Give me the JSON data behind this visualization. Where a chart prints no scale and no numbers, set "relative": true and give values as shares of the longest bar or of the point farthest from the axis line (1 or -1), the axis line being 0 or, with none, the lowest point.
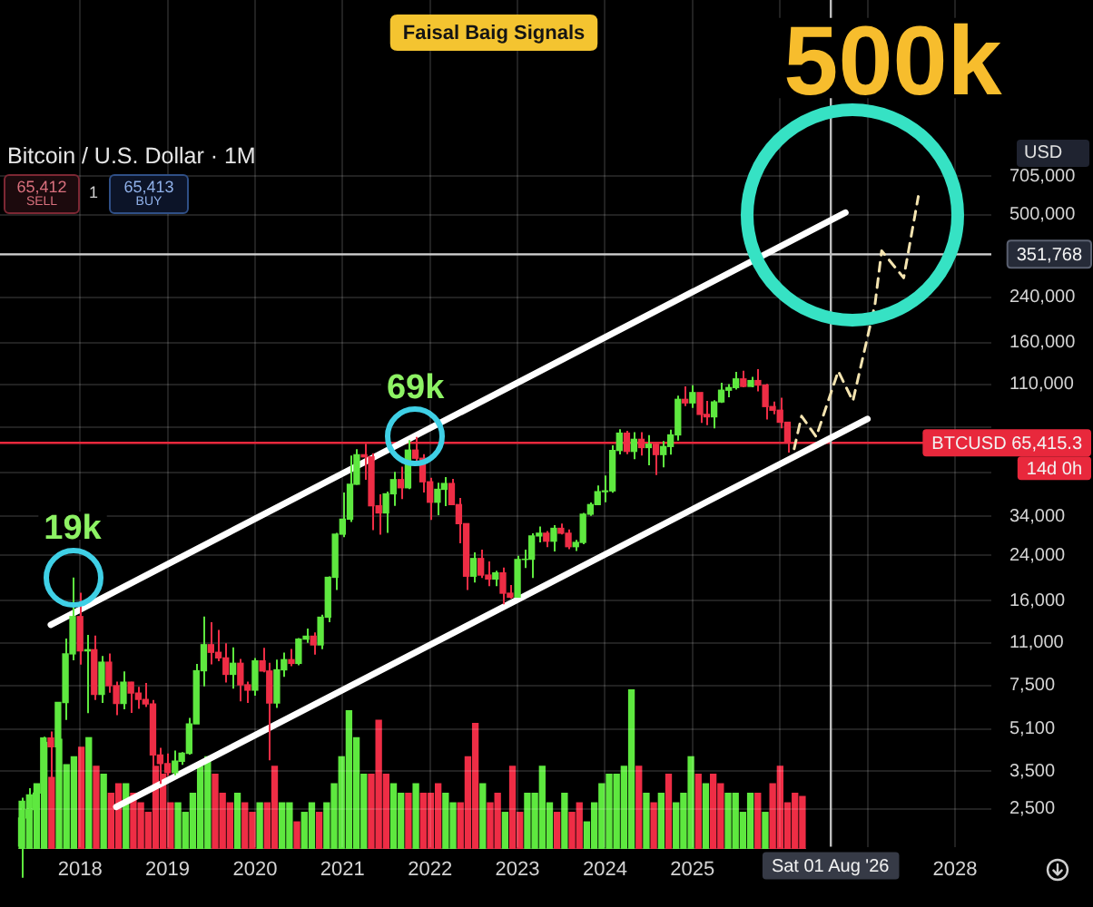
{
  "chart_data": [
    {
      "type": "candlestick",
      "title": "Bitcoin / U.S. Dollar · 1M",
      "x": [
        "2017-05",
        "2017-06",
        "2017-07",
        "2017-08",
        "2017-09",
        "2017-10",
        "2017-11",
        "2017-12",
        "2018-01",
        "2018-02",
        "2018-03",
        "2018-04",
        "2018-05",
        "2018-06",
        "2018-07",
        "2018-08",
        "2018-09",
        "2018-10",
        "2018-11",
        "2018-12",
        "2019-01",
        "2019-02",
        "2019-03",
        "2019-04",
        "2019-05",
        "2019-06",
        "2019-07",
        "2019-08",
        "2019-09",
        "2019-10",
        "2019-11",
        "2019-12",
        "2020-01",
        "2020-02",
        "2020-03",
        "2020-04",
        "2020-05",
        "2020-06",
        "2020-07",
        "2020-08",
        "2020-09",
        "2020-10",
        "2020-11",
        "2020-12",
        "2021-01",
        "2021-02",
        "2021-03",
        "2021-04",
        "2021-05",
        "2021-06",
        "2021-07",
        "2021-08",
        "2021-09",
        "2021-10",
        "2021-11",
        "2021-12",
        "2022-01",
        "2022-02",
        "2022-03",
        "2022-04",
        "2022-05",
        "2022-06",
        "2022-07",
        "2022-08",
        "2022-09",
        "2022-10",
        "2022-11",
        "2022-12",
        "2023-01",
        "2023-02",
        "2023-03",
        "2023-04",
        "2023-05",
        "2023-06",
        "2023-07",
        "2023-08",
        "2023-09",
        "2023-10",
        "2023-11",
        "2023-12",
        "2024-01",
        "2024-02",
        "2024-03",
        "2024-04",
        "2024-05",
        "2024-06",
        "2024-07",
        "2024-08",
        "2024-09",
        "2024-10",
        "2024-11",
        "2024-12",
        "2025-01",
        "2025-02",
        "2025-03",
        "2025-04",
        "2025-05",
        "2025-06",
        "2025-07",
        "2025-08",
        "2025-09",
        "2025-10",
        "2025-11",
        "2025-12",
        "2026-01",
        "2026-02"
      ],
      "ohlc": [
        [
          1350,
          2760,
          1350,
          2300
        ],
        [
          2300,
          3000,
          2080,
          2480
        ],
        [
          2480,
          2920,
          1830,
          2875
        ],
        [
          2875,
          4750,
          2670,
          4700
        ],
        [
          4700,
          4980,
          2970,
          4340
        ],
        [
          4340,
          6470,
          4110,
          6450
        ],
        [
          6450,
          11400,
          5520,
          9950
        ],
        [
          9950,
          19670,
          9400,
          13880
        ],
        [
          13880,
          17180,
          9040,
          10220
        ],
        [
          10220,
          11790,
          5870,
          10330
        ],
        [
          10330,
          11710,
          6600,
          6930
        ],
        [
          6930,
          9760,
          6430,
          9240
        ],
        [
          9240,
          9990,
          7030,
          7490
        ],
        [
          7490,
          7770,
          5760,
          6390
        ],
        [
          6390,
          8510,
          6070,
          7730
        ],
        [
          7730,
          7760,
          5880,
          7010
        ],
        [
          7010,
          7410,
          6100,
          6630
        ],
        [
          6630,
          7680,
          6200,
          6370
        ],
        [
          6370,
          6600,
          3650,
          4040
        ],
        [
          4040,
          4300,
          3120,
          3740
        ],
        [
          3740,
          4090,
          3350,
          3450
        ],
        [
          3450,
          4200,
          3370,
          3820
        ],
        [
          3820,
          4140,
          3700,
          4100
        ],
        [
          4100,
          5620,
          4050,
          5330
        ],
        [
          5330,
          9100,
          5330,
          8560
        ],
        [
          8560,
          13880,
          7450,
          10800
        ],
        [
          10800,
          13200,
          9070,
          10090
        ],
        [
          10090,
          12330,
          9330,
          9600
        ],
        [
          9600,
          10930,
          7700,
          8290
        ],
        [
          8290,
          10540,
          7300,
          9150
        ],
        [
          9150,
          9510,
          6520,
          7550
        ],
        [
          7550,
          7770,
          6430,
          7200
        ],
        [
          7200,
          9580,
          6860,
          9350
        ],
        [
          9350,
          10500,
          8450,
          8540
        ],
        [
          8540,
          9190,
          3850,
          6420
        ],
        [
          6420,
          9460,
          6150,
          8630
        ],
        [
          8630,
          10070,
          8110,
          9450
        ],
        [
          9450,
          10390,
          8920,
          9140
        ],
        [
          9140,
          11450,
          8990,
          11350
        ],
        [
          11350,
          12470,
          10990,
          11650
        ],
        [
          11650,
          12060,
          9880,
          10780
        ],
        [
          10780,
          14100,
          10380,
          13800
        ],
        [
          13800,
          19860,
          13200,
          19700
        ],
        [
          19700,
          29300,
          17600,
          28950
        ],
        [
          28950,
          41950,
          28200,
          33100
        ],
        [
          33100,
          58350,
          32300,
          45200
        ],
        [
          45200,
          61780,
          44950,
          58800
        ],
        [
          58800,
          64900,
          47000,
          57700
        ],
        [
          57700,
          59600,
          30000,
          37300
        ],
        [
          37300,
          41300,
          28800,
          35000
        ],
        [
          35000,
          42300,
          29300,
          41500
        ],
        [
          41500,
          50500,
          37300,
          47100
        ],
        [
          47100,
          52900,
          39600,
          43800
        ],
        [
          43800,
          67000,
          43300,
          61300
        ],
        [
          61300,
          69000,
          53300,
          57000
        ],
        [
          57000,
          59100,
          42000,
          46200
        ],
        [
          46200,
          47900,
          32900,
          38500
        ],
        [
          38500,
          45800,
          34300,
          43200
        ],
        [
          43200,
          48200,
          37200,
          45500
        ],
        [
          45500,
          47400,
          37600,
          37700
        ],
        [
          37700,
          40000,
          26700,
          31800
        ],
        [
          31800,
          31900,
          17600,
          19900
        ],
        [
          19900,
          24600,
          18800,
          23300
        ],
        [
          23300,
          25200,
          19600,
          20100
        ],
        [
          20100,
          22700,
          18200,
          19400
        ],
        [
          19400,
          20900,
          18200,
          20500
        ],
        [
          20500,
          21500,
          15500,
          17100
        ],
        [
          17100,
          18400,
          16300,
          16500
        ],
        [
          16500,
          23900,
          16500,
          23100
        ],
        [
          23100,
          25200,
          21400,
          23150
        ],
        [
          23150,
          29200,
          19600,
          28500
        ],
        [
          28500,
          31000,
          26900,
          29200
        ],
        [
          29200,
          29800,
          25800,
          27200
        ],
        [
          27200,
          31400,
          24800,
          30500
        ],
        [
          30500,
          31800,
          28900,
          29200
        ],
        [
          29200,
          30200,
          25300,
          25900
        ],
        [
          25900,
          27500,
          24900,
          26900
        ],
        [
          26900,
          35000,
          26500,
          34600
        ],
        [
          34600,
          38400,
          34100,
          37700
        ],
        [
          37700,
          44700,
          37600,
          42300
        ],
        [
          42300,
          48900,
          38500,
          42600
        ],
        [
          42600,
          64000,
          41900,
          61100
        ],
        [
          61100,
          73800,
          59000,
          71300
        ],
        [
          71300,
          72800,
          59100,
          60600
        ],
        [
          60600,
          71900,
          56500,
          67500
        ],
        [
          67500,
          71900,
          58400,
          62700
        ],
        [
          62700,
          70000,
          53500,
          64600
        ],
        [
          64600,
          65100,
          49100,
          58900
        ],
        [
          58900,
          66500,
          52600,
          63300
        ],
        [
          63300,
          73600,
          58900,
          70200
        ],
        [
          70200,
          99600,
          66800,
          96400
        ],
        [
          96400,
          108300,
          90700,
          93400
        ],
        [
          93400,
          109400,
          89300,
          102400
        ],
        [
          102400,
          102500,
          78200,
          84300
        ],
        [
          84300,
          95000,
          76600,
          82500
        ],
        [
          82500,
          95700,
          74500,
          94200
        ],
        [
          94200,
          111900,
          93400,
          104600
        ],
        [
          104600,
          110500,
          98200,
          107100
        ],
        [
          107100,
          123200,
          105300,
          115700
        ],
        [
          115700,
          124400,
          107300,
          108200
        ],
        [
          108200,
          117900,
          107300,
          114000
        ],
        [
          114000,
          126200,
          103500,
          109500
        ],
        [
          109500,
          110600,
          80600,
          90400
        ],
        [
          90400,
          94600,
          84400,
          87500
        ],
        [
          87500,
          97900,
          74500,
          78600
        ],
        [
          78600,
          79000,
          60000,
          65400
        ]
      ],
      "colors": [
        "#5ee83f",
        "#5ee83f",
        "#5ee83f",
        "#5ee83f",
        "#ee2d45",
        "#5ee83f",
        "#5ee83f",
        "#5ee83f",
        "#ee2d45",
        "#5ee83f",
        "#ee2d45",
        "#5ee83f",
        "#ee2d45",
        "#ee2d45",
        "#5ee83f",
        "#ee2d45",
        "#ee2d45",
        "#ee2d45",
        "#ee2d45",
        "#ee2d45",
        "#ee2d45",
        "#5ee83f",
        "#5ee83f",
        "#5ee83f",
        "#5ee83f",
        "#5ee83f",
        "#ee2d45",
        "#ee2d45",
        "#ee2d45",
        "#5ee83f",
        "#ee2d45",
        "#ee2d45",
        "#5ee83f",
        "#ee2d45",
        "#ee2d45",
        "#5ee83f",
        "#5ee83f",
        "#ee2d45",
        "#5ee83f",
        "#5ee83f",
        "#ee2d45",
        "#5ee83f",
        "#5ee83f",
        "#5ee83f",
        "#5ee83f",
        "#5ee83f",
        "#5ee83f",
        "#ee2d45",
        "#ee2d45",
        "#ee2d45",
        "#5ee83f",
        "#5ee83f",
        "#ee2d45",
        "#5ee83f",
        "#ee2d45",
        "#ee2d45",
        "#ee2d45",
        "#5ee83f",
        "#5ee83f",
        "#ee2d45",
        "#ee2d45",
        "#ee2d45",
        "#5ee83f",
        "#ee2d45",
        "#ee2d45",
        "#5ee83f",
        "#ee2d45",
        "#ee2d45",
        "#5ee83f",
        "#5ee83f",
        "#5ee83f",
        "#5ee83f",
        "#ee2d45",
        "#5ee83f",
        "#ee2d45",
        "#ee2d45",
        "#5ee83f",
        "#5ee83f",
        "#5ee83f",
        "#5ee83f",
        "#5ee83f",
        "#5ee83f",
        "#5ee83f",
        "#ee2d45",
        "#5ee83f",
        "#ee2d45",
        "#5ee83f",
        "#ee2d45",
        "#5ee83f",
        "#5ee83f",
        "#5ee83f",
        "#ee2d45",
        "#5ee83f",
        "#ee2d45",
        "#ee2d45",
        "#5ee83f",
        "#5ee83f",
        "#5ee83f",
        "#5ee83f",
        "#ee2d45",
        "#5ee83f",
        "#ee2d45",
        "#ee2d45",
        "#ee2d45",
        "#ee2d45",
        "#ee2d45"
      ],
      "series": [
        {
          "type": "line",
          "x": [
            "2017-09",
            "2026-10"
          ],
          "values": [
            12900,
            510000
          ],
          "color": "#ffffff"
        },
        {
          "type": "line",
          "x": [
            "2018-06",
            "2027-01"
          ],
          "values": [
            2540,
            81000
          ],
          "color": "#ffffff"
        },
        {
          "type": "line",
          "x": [
            "2026-03",
            "2026-04",
            "2026-06",
            "2026-09",
            "2026-11",
            "2027-02",
            "2027-03",
            "2027-06",
            "2027-08"
          ],
          "values": [
            62000,
            83000,
            69000,
            124000,
            95000,
            224000,
            363000,
            285000,
            589000
          ],
          "color": "#f4e4b0",
          "line_style": "dashed"
        }
      ],
      "xlim": [
        "2017-02",
        "2028-06"
      ],
      "xticks": [
        "2018",
        "2019",
        "2020",
        "2021",
        "2022",
        "2023",
        "2024",
        "2025",
        {
          "value": "2026",
          "label": null
        },
        {
          "value": "2027",
          "label": null
        },
        "2028"
      ],
      "ylim": [
        1780,
        3400000
      ],
      "yticks": [
        {
          "value": 2500,
          "label": "2,500"
        },
        {
          "value": 3500,
          "label": "3,500"
        },
        {
          "value": 5100,
          "label": "5,100"
        },
        {
          "value": 7500,
          "label": "7,500"
        },
        {
          "value": 11000,
          "label": "11,000"
        },
        {
          "value": 16000,
          "label": "16,000"
        },
        {
          "value": 24000,
          "label": "24,000"
        },
        {
          "value": 34000,
          "label": "34,000"
        },
        {
          "value": 50000,
          "label": null
        },
        {
          "value": 75000,
          "label": null
        },
        {
          "value": 110000,
          "label": "110,000"
        },
        {
          "value": 160000,
          "label": "160,000"
        },
        {
          "value": 240000,
          "label": "240,000"
        },
        {
          "value": 350000,
          "label": null
        },
        {
          "value": 500000,
          "label": "500,000"
        },
        {
          "value": 705000,
          "label": "705,000"
        }
      ],
      "log": true,
      "grid": true,
      "marker": "none",
      "ref_lines": [
        {
          "axis": "y",
          "value": 351768,
          "label": "351,768",
          "color": "#d0d0d0"
        },
        {
          "axis": "y",
          "value": 65415.3,
          "label": "BTCUSD 65,415.3",
          "color": "#e8283c"
        },
        {
          "axis": "x",
          "value": "2026-08-01",
          "label": "Sat 01 Aug '26",
          "color": "#bdbdbd"
        }
      ],
      "annotations": [
        "Faisal Baig Signals",
        "65,412",
        "SELL",
        "1",
        "65,413",
        "BUY",
        "USD",
        "14d 0h",
        {
          "text": "19k",
          "x": "2017-12",
          "y": 19700
        },
        {
          "text": "69k",
          "x": "2021-11",
          "y": 69000
        },
        {
          "text": "500k",
          "x": "2026-11",
          "y": 500000
        }
      ]
    },
    {
      "type": "bar",
      "relative": true,
      "categories": [
        null,
        null,
        null,
        null,
        null,
        null,
        null,
        null,
        null,
        null,
        null,
        null,
        null,
        null,
        null,
        null,
        null,
        null,
        null,
        null,
        null,
        null,
        null,
        null,
        null,
        null,
        null,
        null,
        null,
        null,
        null,
        null,
        null,
        null,
        null,
        null,
        null,
        null,
        null,
        null,
        null,
        null,
        null,
        null,
        null,
        null,
        null,
        null,
        null,
        null,
        null,
        null,
        null,
        null,
        null,
        null,
        null,
        null,
        null,
        null,
        null,
        null,
        null,
        null,
        null,
        null,
        null,
        null,
        null,
        null,
        null,
        null,
        null,
        null,
        null,
        null,
        null,
        null,
        null,
        null,
        null,
        null,
        null,
        null,
        null,
        null,
        null,
        null,
        null,
        null,
        null,
        null,
        null,
        null,
        null,
        null,
        null,
        null,
        null,
        null,
        null,
        null,
        null,
        null,
        null,
        null
      ],
      "values": [
        0.3,
        0.34,
        0.41,
        0.67,
        0.45,
        0.69,
        0.53,
        0.58,
        0.64,
        0.7,
        0.52,
        0.47,
        0.35,
        0.41,
        0.41,
        0.35,
        0.29,
        0.23,
        0.52,
        0.47,
        0.29,
        0.29,
        0.23,
        0.35,
        0.52,
        0.58,
        0.47,
        0.35,
        0.29,
        0.35,
        0.29,
        0.23,
        0.29,
        0.29,
        0.52,
        0.29,
        0.29,
        0.17,
        0.23,
        0.29,
        0.23,
        0.29,
        0.41,
        0.58,
        0.87,
        0.7,
        0.47,
        0.47,
        0.81,
        0.47,
        0.41,
        0.35,
        0.35,
        0.41,
        0.35,
        0.35,
        0.41,
        0.35,
        0.29,
        0.29,
        0.58,
        0.79,
        0.41,
        0.29,
        0.35,
        0.23,
        0.52,
        0.23,
        0.35,
        0.35,
        0.52,
        0.29,
        0.23,
        0.35,
        0.23,
        0.29,
        0.17,
        0.29,
        0.41,
        0.47,
        0.47,
        0.52,
        1,
        0.52,
        0.35,
        0.29,
        0.35,
        0.47,
        0.29,
        0.35,
        0.58,
        0.47,
        0.41,
        0.47,
        0.41,
        0.35,
        0.35,
        0.23,
        0.35,
        0.35,
        0.23,
        0.41,
        0.52,
        0.29,
        0.35,
        0.33
      ],
      "colors": [
        "#5ee83f",
        "#5ee83f",
        "#5ee83f",
        "#5ee83f",
        "#ee2d45",
        "#5ee83f",
        "#5ee83f",
        "#5ee83f",
        "#ee2d45",
        "#5ee83f",
        "#ee2d45",
        "#5ee83f",
        "#ee2d45",
        "#ee2d45",
        "#5ee83f",
        "#ee2d45",
        "#ee2d45",
        "#ee2d45",
        "#ee2d45",
        "#ee2d45",
        "#ee2d45",
        "#5ee83f",
        "#5ee83f",
        "#5ee83f",
        "#5ee83f",
        "#5ee83f",
        "#ee2d45",
        "#ee2d45",
        "#ee2d45",
        "#5ee83f",
        "#ee2d45",
        "#ee2d45",
        "#5ee83f",
        "#ee2d45",
        "#ee2d45",
        "#5ee83f",
        "#5ee83f",
        "#ee2d45",
        "#5ee83f",
        "#5ee83f",
        "#ee2d45",
        "#5ee83f",
        "#5ee83f",
        "#5ee83f",
        "#5ee83f",
        "#5ee83f",
        "#5ee83f",
        "#ee2d45",
        "#ee2d45",
        "#ee2d45",
        "#5ee83f",
        "#5ee83f",
        "#ee2d45",
        "#5ee83f",
        "#ee2d45",
        "#ee2d45",
        "#ee2d45",
        "#5ee83f",
        "#5ee83f",
        "#ee2d45",
        "#ee2d45",
        "#ee2d45",
        "#5ee83f",
        "#ee2d45",
        "#ee2d45",
        "#5ee83f",
        "#ee2d45",
        "#ee2d45",
        "#5ee83f",
        "#5ee83f",
        "#5ee83f",
        "#5ee83f",
        "#ee2d45",
        "#5ee83f",
        "#ee2d45",
        "#ee2d45",
        "#5ee83f",
        "#5ee83f",
        "#5ee83f",
        "#5ee83f",
        "#5ee83f",
        "#5ee83f",
        "#5ee83f",
        "#ee2d45",
        "#5ee83f",
        "#ee2d45",
        "#5ee83f",
        "#ee2d45",
        "#5ee83f",
        "#5ee83f",
        "#5ee83f",
        "#ee2d45",
        "#5ee83f",
        "#ee2d45",
        "#ee2d45",
        "#5ee83f",
        "#5ee83f",
        "#5ee83f",
        "#5ee83f",
        "#ee2d45",
        "#5ee83f",
        "#ee2d45",
        "#ee2d45",
        "#ee2d45",
        "#ee2d45",
        "#ee2d45"
      ]
    }
  ]
}
